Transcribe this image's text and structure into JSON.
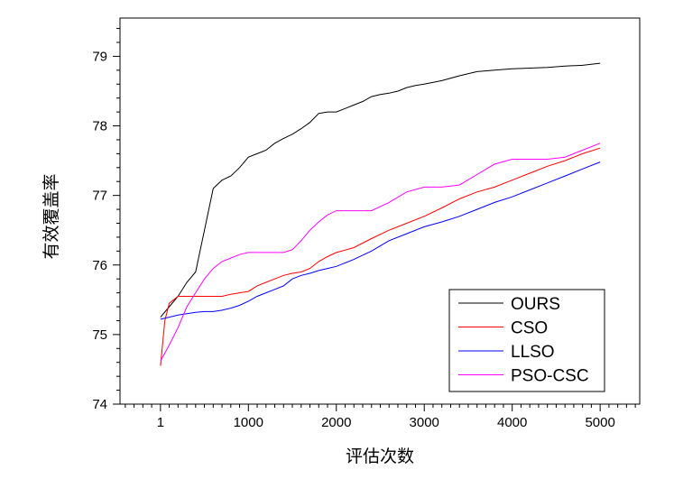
{
  "chart_data": {
    "type": "line",
    "title": "",
    "xlabel": "评估次数",
    "ylabel": "有效覆盖率",
    "xlim": [
      -460,
      5450
    ],
    "ylim": [
      74,
      79.55
    ],
    "xticks": [
      1,
      1000,
      2000,
      3000,
      4000,
      5000
    ],
    "xtick_labels": [
      "1",
      "1000",
      "2000",
      "3000",
      "4000",
      "5000"
    ],
    "yticks": [
      74,
      75,
      76,
      77,
      78,
      79
    ],
    "ytick_labels": [
      "74",
      "75",
      "76",
      "77",
      "78",
      "79"
    ],
    "grid": false,
    "legend_position": "bottom-right",
    "series": [
      {
        "name": "OURS",
        "color": "#000000",
        "x": [
          1,
          100,
          200,
          300,
          400,
          500,
          600,
          700,
          800,
          900,
          1000,
          1100,
          1200,
          1300,
          1400,
          1500,
          1600,
          1700,
          1800,
          1900,
          2000,
          2100,
          2200,
          2300,
          2400,
          2500,
          2600,
          2700,
          2800,
          2900,
          3000,
          3200,
          3400,
          3600,
          3800,
          4000,
          4200,
          4400,
          4600,
          4800,
          5000
        ],
        "y": [
          75.25,
          75.4,
          75.55,
          75.75,
          75.9,
          76.5,
          77.1,
          77.22,
          77.28,
          77.4,
          77.55,
          77.6,
          77.65,
          77.75,
          77.82,
          77.88,
          77.96,
          78.05,
          78.18,
          78.2,
          78.2,
          78.25,
          78.3,
          78.35,
          78.42,
          78.45,
          78.47,
          78.5,
          78.55,
          78.58,
          78.6,
          78.65,
          78.72,
          78.78,
          78.8,
          78.82,
          78.83,
          78.84,
          78.86,
          78.87,
          78.9
        ]
      },
      {
        "name": "CSO",
        "color": "#ff0000",
        "x": [
          1,
          50,
          100,
          200,
          300,
          400,
          500,
          600,
          700,
          800,
          900,
          1000,
          1100,
          1200,
          1300,
          1400,
          1500,
          1600,
          1700,
          1800,
          1900,
          2000,
          2200,
          2400,
          2600,
          2800,
          3000,
          3200,
          3400,
          3600,
          3800,
          4000,
          4200,
          4400,
          4600,
          4800,
          5000
        ],
        "y": [
          74.55,
          75.2,
          75.45,
          75.55,
          75.55,
          75.55,
          75.55,
          75.55,
          75.55,
          75.58,
          75.6,
          75.62,
          75.7,
          75.75,
          75.8,
          75.85,
          75.88,
          75.9,
          75.95,
          76.05,
          76.12,
          76.18,
          76.25,
          76.38,
          76.5,
          76.6,
          76.7,
          76.82,
          76.95,
          77.05,
          77.12,
          77.22,
          77.32,
          77.42,
          77.5,
          77.6,
          77.68
        ]
      },
      {
        "name": "LLSO",
        "color": "#0000ff",
        "x": [
          1,
          100,
          200,
          300,
          400,
          500,
          600,
          700,
          800,
          900,
          1000,
          1100,
          1200,
          1300,
          1400,
          1500,
          1600,
          1700,
          1800,
          1900,
          2000,
          2200,
          2400,
          2600,
          2800,
          3000,
          3200,
          3400,
          3600,
          3800,
          4000,
          4200,
          4400,
          4600,
          4800,
          5000
        ],
        "y": [
          75.22,
          75.25,
          75.28,
          75.3,
          75.32,
          75.33,
          75.33,
          75.35,
          75.38,
          75.42,
          75.48,
          75.55,
          75.6,
          75.65,
          75.7,
          75.8,
          75.85,
          75.88,
          75.92,
          75.95,
          75.98,
          76.08,
          76.2,
          76.35,
          76.45,
          76.55,
          76.62,
          76.7,
          76.8,
          76.9,
          76.98,
          77.08,
          77.18,
          77.28,
          77.38,
          77.48
        ]
      },
      {
        "name": "PSO-CSC",
        "color": "#ff00ff",
        "x": [
          1,
          100,
          200,
          300,
          400,
          500,
          600,
          700,
          800,
          900,
          1000,
          1100,
          1200,
          1300,
          1400,
          1500,
          1600,
          1700,
          1800,
          1900,
          2000,
          2200,
          2400,
          2600,
          2800,
          3000,
          3200,
          3400,
          3600,
          3800,
          4000,
          4200,
          4400,
          4600,
          4800,
          5000
        ],
        "y": [
          74.62,
          74.85,
          75.1,
          75.4,
          75.6,
          75.8,
          75.95,
          76.05,
          76.1,
          76.15,
          76.18,
          76.18,
          76.18,
          76.18,
          76.18,
          76.22,
          76.35,
          76.5,
          76.62,
          76.72,
          76.78,
          76.78,
          76.78,
          76.9,
          77.05,
          77.12,
          77.12,
          77.15,
          77.3,
          77.45,
          77.52,
          77.52,
          77.52,
          77.55,
          77.65,
          77.75
        ]
      }
    ]
  }
}
